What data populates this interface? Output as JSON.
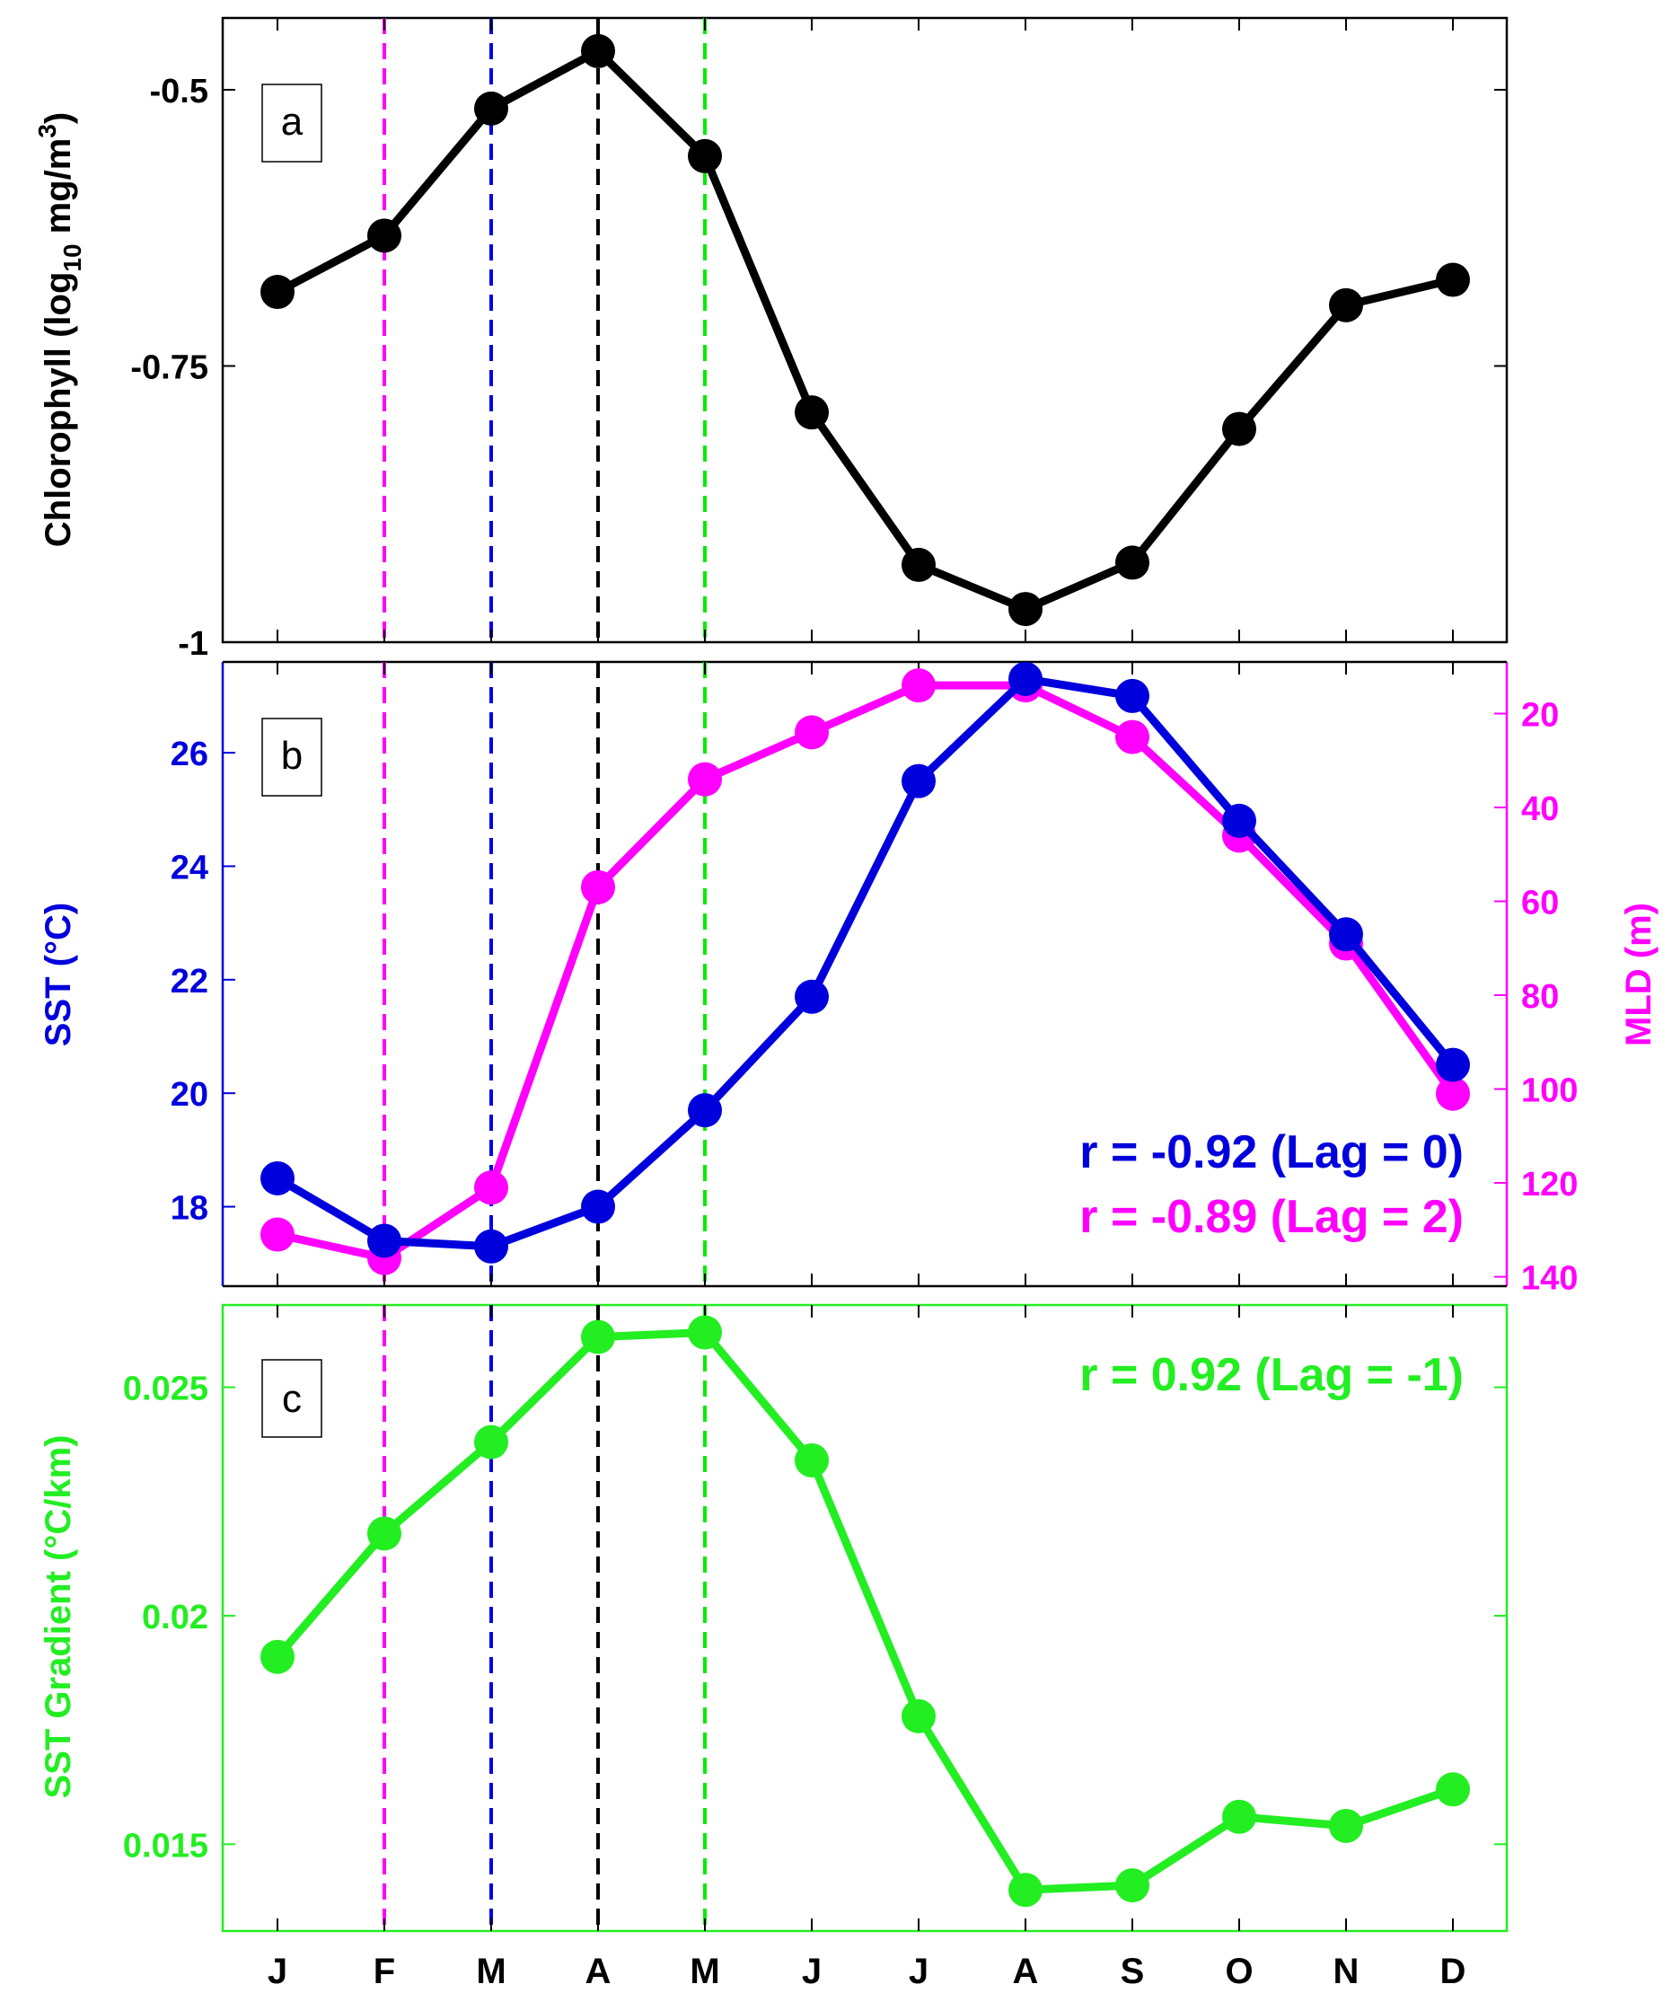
{
  "chart_data": [
    {
      "type": "line",
      "panel": "a",
      "panel_label": "a",
      "categories": [
        "J",
        "F",
        "M",
        "A",
        "M",
        "J",
        "J",
        "A",
        "S",
        "O",
        "N",
        "D"
      ],
      "series": [
        {
          "name": "Chlorophyll",
          "color": "#000000",
          "values": [
            -0.683,
            -0.632,
            -0.517,
            -0.465,
            -0.56,
            -0.792,
            -0.93,
            -0.97,
            -0.928,
            -0.807,
            -0.695,
            -0.672
          ]
        }
      ],
      "ylabel": "Chlorophyll (log10 mg/m3)",
      "ylabel_parts": {
        "main": "Chlorophyll (log",
        "sub": "10",
        "unit": " mg/m",
        "sup": "3",
        "close": ")"
      },
      "ylim": [
        -1.0,
        -0.435
      ],
      "yticks": [
        -0.5,
        -0.75,
        -1
      ],
      "ytick_labels": [
        "-0.5",
        "-0.75",
        "-1"
      ],
      "vlines": [
        {
          "x": "F",
          "color": "#ff00ff"
        },
        {
          "x": "M",
          "color": "#0000ee"
        },
        {
          "x": "A",
          "color": "#000000"
        },
        {
          "x": "M",
          "color": "#00ee00"
        }
      ]
    },
    {
      "type": "line",
      "panel": "b",
      "panel_label": "b",
      "categories": [
        "J",
        "F",
        "M",
        "A",
        "M",
        "J",
        "J",
        "A",
        "S",
        "O",
        "N",
        "D"
      ],
      "series": [
        {
          "name": "SST",
          "axis": "left",
          "color": "#0000dd",
          "values": [
            18.5,
            17.4,
            17.3,
            18.0,
            19.7,
            21.7,
            25.5,
            27.3,
            27.0,
            24.8,
            22.8,
            20.5
          ]
        },
        {
          "name": "MLD",
          "axis": "right",
          "color": "#ff00ff",
          "values": [
            131,
            136,
            121,
            57,
            34,
            24,
            14,
            14,
            25,
            46,
            69,
            101
          ]
        }
      ],
      "ylabel": "SST (°C)",
      "ylim": [
        16.6,
        27.6
      ],
      "yticks": [
        18,
        20,
        22,
        24,
        26
      ],
      "ytick_labels": [
        "18",
        "20",
        "22",
        "24",
        "26"
      ],
      "ylabel_right": "MLD (m)",
      "ylim_right": [
        142,
        9
      ],
      "yticks_right": [
        20,
        40,
        60,
        80,
        100,
        120,
        140
      ],
      "ytick_labels_right": [
        "20",
        "40",
        "60",
        "80",
        "100",
        "120",
        "140"
      ],
      "annotations": [
        {
          "text": "r = -0.92 (Lag = 0)",
          "color": "#0000dd"
        },
        {
          "text": "r = -0.89 (Lag = 2)",
          "color": "#ff00ff"
        }
      ]
    },
    {
      "type": "line",
      "panel": "c",
      "panel_label": "c",
      "categories": [
        "J",
        "F",
        "M",
        "A",
        "M",
        "J",
        "J",
        "A",
        "S",
        "O",
        "N",
        "D"
      ],
      "xtick_labels": [
        "J",
        "F",
        "M",
        "A",
        "M",
        "J",
        "J",
        "A",
        "S",
        "O",
        "N",
        "D"
      ],
      "series": [
        {
          "name": "SST Gradient",
          "color": "#22ee22",
          "values": [
            0.0191,
            0.0218,
            0.0238,
            0.0261,
            0.0262,
            0.0234,
            0.0178,
            0.014,
            0.0141,
            0.0156,
            0.0154,
            0.0162
          ]
        }
      ],
      "ylabel": "SST Gradient (°C/km)",
      "ylim": [
        0.0131,
        0.0268
      ],
      "yticks": [
        0.015,
        0.02,
        0.025
      ],
      "ytick_labels": [
        "0.015",
        "0.02",
        "0.025"
      ],
      "annotations": [
        {
          "text": "r = 0.92 (Lag = -1)",
          "color": "#22ee22"
        }
      ]
    }
  ]
}
